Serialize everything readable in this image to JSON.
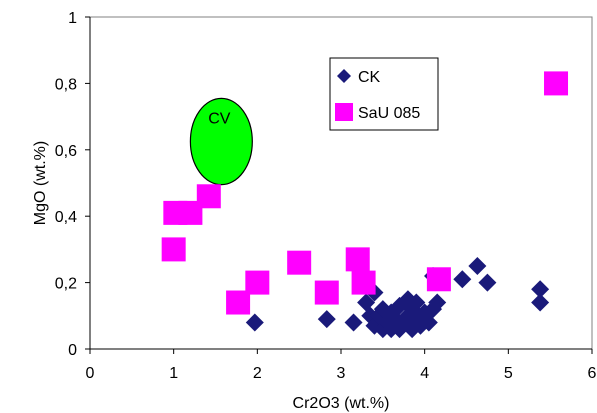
{
  "chart_data": {
    "type": "scatter",
    "xlabel": "Cr2O3 (wt.%)",
    "ylabel": "MgO (wt.%)",
    "xlim": [
      0,
      6
    ],
    "ylim": [
      0,
      1
    ],
    "x_ticks": [
      0,
      1,
      2,
      3,
      4,
      5,
      6
    ],
    "y_ticks": [
      0,
      0.2,
      0.4,
      0.6,
      0.8,
      1
    ],
    "x_tick_labels": [
      "0",
      "1",
      "2",
      "3",
      "4",
      "5",
      "6"
    ],
    "y_tick_labels": [
      "0",
      "0,2",
      "0,4",
      "0,6",
      "0,8",
      "1"
    ],
    "grid": false,
    "legend_position": "top-right",
    "series": [
      {
        "name": "CK",
        "marker": "diamond",
        "color": "#1a1a7a",
        "points": [
          {
            "x": 1.97,
            "y": 0.08
          },
          {
            "x": 2.83,
            "y": 0.09
          },
          {
            "x": 3.15,
            "y": 0.08
          },
          {
            "x": 3.3,
            "y": 0.14
          },
          {
            "x": 3.35,
            "y": 0.1
          },
          {
            "x": 3.4,
            "y": 0.17
          },
          {
            "x": 3.4,
            "y": 0.07
          },
          {
            "x": 3.45,
            "y": 0.1
          },
          {
            "x": 3.5,
            "y": 0.06
          },
          {
            "x": 3.5,
            "y": 0.12
          },
          {
            "x": 3.55,
            "y": 0.08
          },
          {
            "x": 3.6,
            "y": 0.06
          },
          {
            "x": 3.6,
            "y": 0.11
          },
          {
            "x": 3.65,
            "y": 0.09
          },
          {
            "x": 3.7,
            "y": 0.06
          },
          {
            "x": 3.7,
            "y": 0.13
          },
          {
            "x": 3.75,
            "y": 0.08
          },
          {
            "x": 3.8,
            "y": 0.1
          },
          {
            "x": 3.8,
            "y": 0.15
          },
          {
            "x": 3.85,
            "y": 0.06
          },
          {
            "x": 3.85,
            "y": 0.12
          },
          {
            "x": 3.9,
            "y": 0.09
          },
          {
            "x": 3.9,
            "y": 0.14
          },
          {
            "x": 3.95,
            "y": 0.07
          },
          {
            "x": 4.0,
            "y": 0.11
          },
          {
            "x": 4.05,
            "y": 0.08
          },
          {
            "x": 4.1,
            "y": 0.22
          },
          {
            "x": 4.1,
            "y": 0.12
          },
          {
            "x": 4.15,
            "y": 0.14
          },
          {
            "x": 4.45,
            "y": 0.21
          },
          {
            "x": 4.63,
            "y": 0.25
          },
          {
            "x": 4.75,
            "y": 0.2
          },
          {
            "x": 5.38,
            "y": 0.18
          },
          {
            "x": 5.38,
            "y": 0.14
          }
        ]
      },
      {
        "name": "SaU 085",
        "marker": "square",
        "color": "#ff00ff",
        "points": [
          {
            "x": 1.0,
            "y": 0.3
          },
          {
            "x": 1.02,
            "y": 0.41
          },
          {
            "x": 1.2,
            "y": 0.41
          },
          {
            "x": 1.42,
            "y": 0.46
          },
          {
            "x": 1.77,
            "y": 0.14
          },
          {
            "x": 2.0,
            "y": 0.2
          },
          {
            "x": 2.5,
            "y": 0.26
          },
          {
            "x": 2.83,
            "y": 0.17
          },
          {
            "x": 3.2,
            "y": 0.27
          },
          {
            "x": 3.27,
            "y": 0.2
          },
          {
            "x": 4.17,
            "y": 0.21
          },
          {
            "x": 5.57,
            "y": 0.8
          }
        ]
      }
    ],
    "annotations": [
      {
        "label": "CV",
        "shape": "ellipse",
        "fill": "#00ff00",
        "center": {
          "x": 1.57,
          "y": 0.625
        },
        "rx": 0.37,
        "ry": 0.13
      }
    ]
  }
}
